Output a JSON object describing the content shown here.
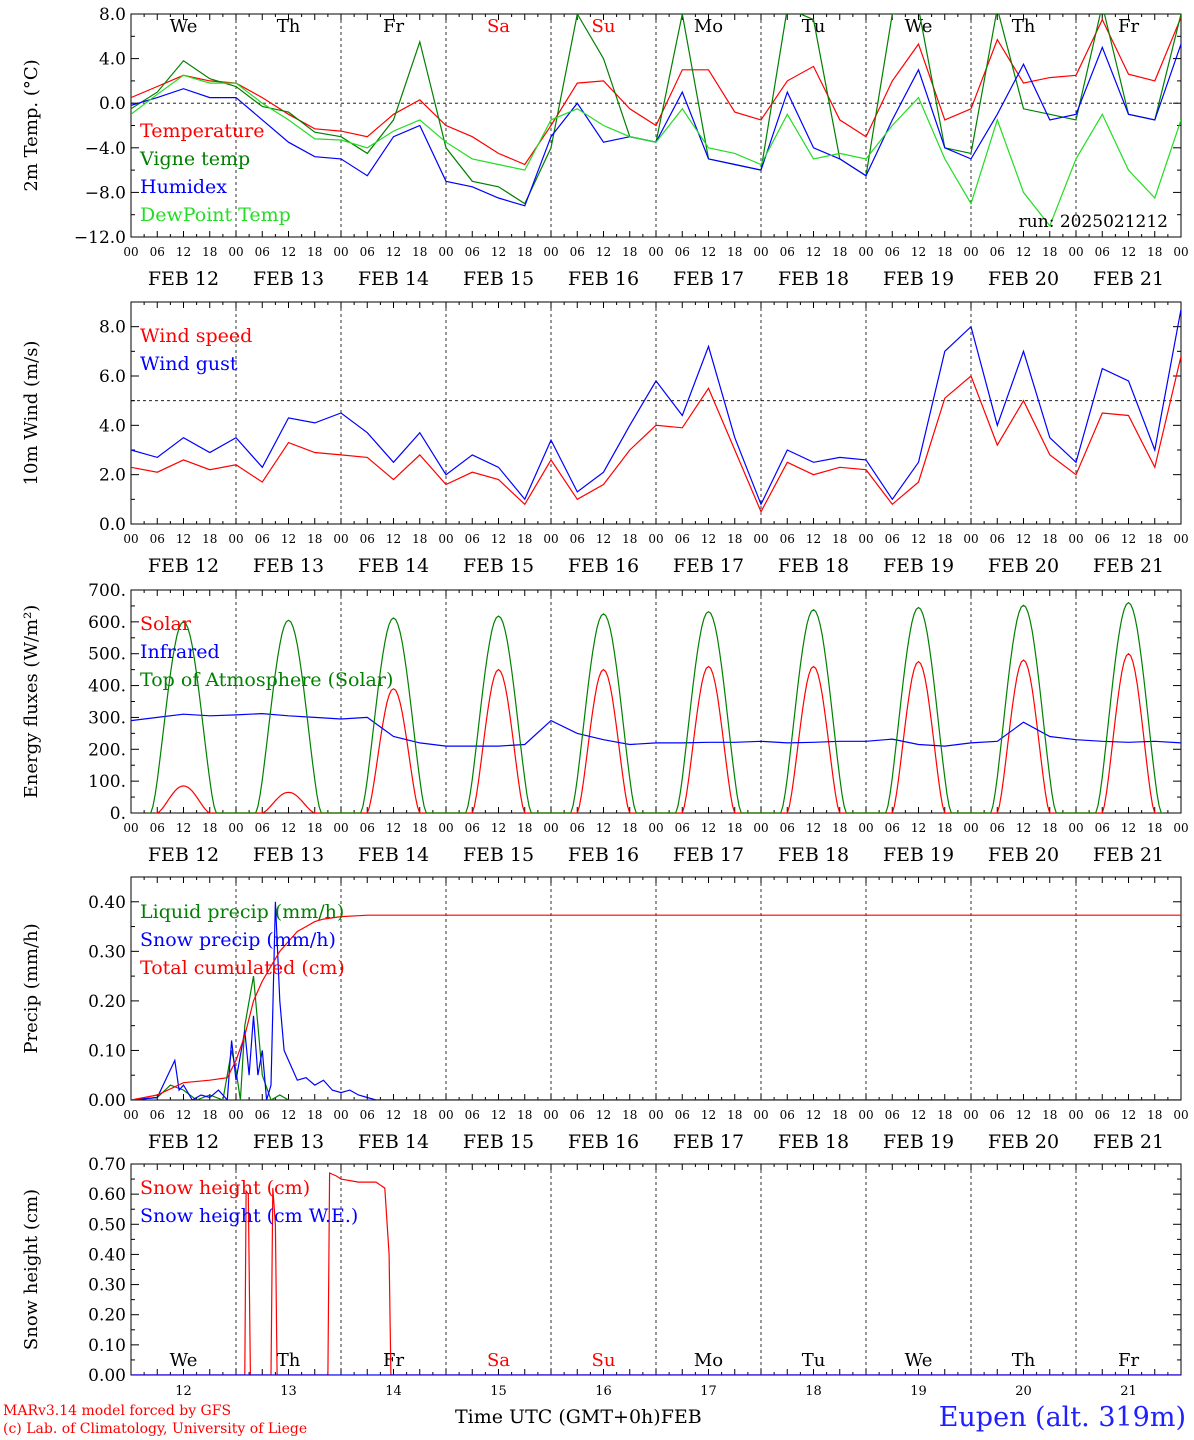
{
  "run_label": "run: 2025021212",
  "footer": {
    "model": "MARv3.14 model forced by GFS",
    "lab": "(c) Lab. of Climatology, University of Liege",
    "location": "Eupen (alt. 319m)",
    "xlabel": "Time UTC (GMT+0h)",
    "month": "FEB"
  },
  "colors": {
    "red": "#ff0000",
    "green": "#008000",
    "blue": "#0000ff",
    "lightgreen": "#22dd22",
    "black": "#000000"
  },
  "chart_data": [
    {
      "type": "line",
      "ylabel": "2m Temp. (°C)",
      "ylim": [
        -12,
        8
      ],
      "yticks": [
        8.0,
        4.0,
        0.0,
        -4.0,
        -8.0,
        -12.0
      ],
      "ytick_labels": [
        "8.0",
        "4.0",
        "0.0",
        "−4.0",
        "−8.0",
        "−12.0"
      ],
      "ref_line": 0,
      "hour_ticks": [
        "00",
        "06",
        "12",
        "18"
      ],
      "date_labels": [
        "FEB 12",
        "FEB 13",
        "FEB 14",
        "FEB 15",
        "FEB 16",
        "FEB 17",
        "FEB 18",
        "FEB 19",
        "FEB 20",
        "FEB 21"
      ],
      "weekdays": [
        {
          "label": "We",
          "color": "#000000"
        },
        {
          "label": "Th",
          "color": "#000000"
        },
        {
          "label": "Fr",
          "color": "#000000"
        },
        {
          "label": "Sa",
          "color": "#ff0000"
        },
        {
          "label": "Su",
          "color": "#ff0000"
        },
        {
          "label": "Mo",
          "color": "#000000"
        },
        {
          "label": "Tu",
          "color": "#000000"
        },
        {
          "label": "We",
          "color": "#000000"
        },
        {
          "label": "Th",
          "color": "#000000"
        },
        {
          "label": "Fr",
          "color": "#000000"
        }
      ],
      "series": [
        {
          "name": "Temperature",
          "color": "#ff0000",
          "x": [
            0,
            6,
            12,
            18,
            24,
            30,
            36,
            42,
            48,
            54,
            60,
            66,
            72,
            78,
            84,
            90,
            96,
            102,
            108,
            114,
            120,
            126,
            132,
            138,
            144,
            150,
            156,
            162,
            168,
            174,
            180,
            186,
            192,
            198,
            204,
            210,
            216,
            222,
            228,
            234,
            240
          ],
          "y": [
            0.5,
            1.5,
            2.5,
            2.0,
            1.8,
            0.5,
            -1.0,
            -2.3,
            -2.5,
            -3.0,
            -1.0,
            0.3,
            -2.0,
            -3.0,
            -4.5,
            -5.5,
            -2.0,
            1.8,
            2.0,
            -0.5,
            -2.0,
            3.0,
            3.0,
            -0.8,
            -1.5,
            2.0,
            3.3,
            -1.5,
            -3.0,
            2.0,
            5.3,
            -1.5,
            -0.5,
            5.7,
            1.8,
            2.3,
            2.5,
            7.5,
            2.6,
            2.0,
            7.7
          ]
        },
        {
          "name": "Vigne temp",
          "color": "#008000",
          "x": [
            0,
            6,
            12,
            18,
            24,
            30,
            36,
            42,
            48,
            54,
            60,
            66,
            72,
            78,
            84,
            90,
            96,
            102,
            108,
            114,
            120,
            126,
            132,
            138,
            144,
            150,
            156,
            162,
            168,
            174,
            180,
            186,
            192,
            198,
            204,
            210,
            216,
            222,
            228,
            234,
            240
          ],
          "y": [
            -0.5,
            1.0,
            3.8,
            2.2,
            1.5,
            -0.3,
            -0.8,
            -2.6,
            -3.0,
            -4.5,
            -1.5,
            5.5,
            -4.0,
            -7.0,
            -7.5,
            -9.0,
            -4.0,
            8.0,
            4.0,
            -3.0,
            -3.5,
            8.0,
            -5.0,
            -5.5,
            -6.0,
            8.5,
            7.5,
            -5.0,
            -6.5,
            8.0,
            8.5,
            -4.0,
            -4.5,
            8.5,
            -0.5,
            -1.0,
            -1.5,
            8.8,
            -1.0,
            -1.5,
            8.0
          ]
        },
        {
          "name": "Humidex",
          "color": "#0000ff",
          "x": [
            0,
            6,
            12,
            18,
            24,
            30,
            36,
            42,
            48,
            54,
            60,
            66,
            72,
            78,
            84,
            90,
            96,
            102,
            108,
            114,
            120,
            126,
            132,
            138,
            144,
            150,
            156,
            162,
            168,
            174,
            180,
            186,
            192,
            198,
            204,
            210,
            216,
            222,
            228,
            234,
            240
          ],
          "y": [
            -0.2,
            0.5,
            1.3,
            0.5,
            0.5,
            -1.5,
            -3.5,
            -4.8,
            -5.0,
            -6.5,
            -3.0,
            -2.0,
            -7.0,
            -7.5,
            -8.5,
            -9.2,
            -3.0,
            0.0,
            -3.5,
            -3.0,
            -3.5,
            1.0,
            -5.0,
            -5.5,
            -6.0,
            1.0,
            -4.0,
            -5.0,
            -6.5,
            -1.5,
            3.0,
            -4.0,
            -5.0,
            -1.0,
            3.5,
            -1.5,
            -1.0,
            5.0,
            -1.0,
            -1.5,
            5.3
          ]
        },
        {
          "name": "DewPoint Temp",
          "color": "#22dd22",
          "x": [
            0,
            6,
            12,
            18,
            24,
            30,
            36,
            42,
            48,
            54,
            60,
            66,
            72,
            78,
            84,
            90,
            96,
            102,
            108,
            114,
            120,
            126,
            132,
            138,
            144,
            150,
            156,
            162,
            168,
            174,
            180,
            186,
            192,
            198,
            204,
            210,
            216,
            222,
            228,
            234,
            240
          ],
          "y": [
            -1.0,
            0.8,
            2.5,
            1.8,
            1.8,
            0.0,
            -1.5,
            -3.2,
            -3.3,
            -4.0,
            -2.5,
            -1.5,
            -3.5,
            -5.0,
            -5.5,
            -6.0,
            -1.5,
            -0.5,
            -2.0,
            -3.0,
            -3.5,
            -0.5,
            -4.0,
            -4.5,
            -5.5,
            -1.0,
            -5.0,
            -4.5,
            -5.0,
            -2.0,
            0.5,
            -5.0,
            -9.0,
            -1.5,
            -8.0,
            -11.0,
            -5.0,
            -1.0,
            -6.0,
            -8.5,
            -1.5
          ]
        }
      ]
    },
    {
      "type": "line",
      "ylabel": "10m Wind (m/s)",
      "ylim": [
        0,
        9
      ],
      "yticks": [
        8.0,
        6.0,
        4.0,
        2.0,
        0.0
      ],
      "ytick_labels": [
        "8.0",
        "6.0",
        "4.0",
        "2.0",
        "0.0"
      ],
      "ref_line": 5,
      "series": [
        {
          "name": "Wind speed",
          "color": "#ff0000",
          "x": [
            0,
            6,
            12,
            18,
            24,
            30,
            36,
            42,
            48,
            54,
            60,
            66,
            72,
            78,
            84,
            90,
            96,
            102,
            108,
            114,
            120,
            126,
            132,
            138,
            144,
            150,
            156,
            162,
            168,
            174,
            180,
            186,
            192,
            198,
            204,
            210,
            216,
            222,
            228,
            234,
            240
          ],
          "y": [
            2.3,
            2.1,
            2.6,
            2.2,
            2.4,
            1.7,
            3.3,
            2.9,
            2.8,
            2.7,
            1.8,
            2.8,
            1.6,
            2.1,
            1.8,
            0.8,
            2.6,
            1.0,
            1.6,
            3.0,
            4.0,
            3.9,
            5.5,
            3.0,
            0.5,
            2.5,
            2.0,
            2.3,
            2.2,
            0.8,
            1.7,
            5.1,
            6.0,
            3.2,
            5.0,
            2.8,
            2.0,
            4.5,
            4.4,
            2.3,
            6.8
          ]
        },
        {
          "name": "Wind gust",
          "color": "#0000ff",
          "x": [
            0,
            6,
            12,
            18,
            24,
            30,
            36,
            42,
            48,
            54,
            60,
            66,
            72,
            78,
            84,
            90,
            96,
            102,
            108,
            114,
            120,
            126,
            132,
            138,
            144,
            150,
            156,
            162,
            168,
            174,
            180,
            186,
            192,
            198,
            204,
            210,
            216,
            222,
            228,
            234,
            240
          ],
          "y": [
            3.0,
            2.7,
            3.5,
            2.9,
            3.5,
            2.3,
            4.3,
            4.1,
            4.5,
            3.7,
            2.5,
            3.7,
            2.0,
            2.8,
            2.3,
            1.0,
            3.4,
            1.3,
            2.1,
            4.0,
            5.8,
            4.4,
            7.2,
            3.5,
            0.8,
            3.0,
            2.5,
            2.7,
            2.6,
            1.0,
            2.5,
            7.0,
            8.0,
            4.0,
            7.0,
            3.5,
            2.5,
            6.3,
            5.8,
            3.0,
            8.7
          ]
        }
      ]
    },
    {
      "type": "line",
      "ylabel": "Energy fluxes (W/m²)",
      "ylim": [
        0,
        700
      ],
      "yticks": [
        700,
        600,
        500,
        400,
        300,
        200,
        100,
        0
      ],
      "ytick_labels": [
        "700.",
        "600.",
        "500.",
        "400.",
        "300.",
        "200.",
        "100.",
        "0."
      ],
      "ref_line": null,
      "series": [
        {
          "name": "Solar",
          "color": "#ff0000",
          "day_peaks": [
            85,
            65,
            390,
            450,
            450,
            460,
            460,
            475,
            480,
            500
          ]
        },
        {
          "name": "Infrared",
          "color": "#0000ff",
          "x": [
            0,
            6,
            12,
            18,
            24,
            30,
            36,
            42,
            48,
            54,
            60,
            66,
            72,
            78,
            84,
            90,
            96,
            102,
            108,
            114,
            120,
            126,
            132,
            138,
            144,
            150,
            156,
            162,
            168,
            174,
            180,
            186,
            192,
            198,
            204,
            210,
            216,
            222,
            228,
            234,
            240
          ],
          "y": [
            290,
            300,
            310,
            305,
            308,
            312,
            305,
            300,
            295,
            300,
            240,
            220,
            210,
            210,
            210,
            215,
            290,
            250,
            230,
            215,
            220,
            220,
            222,
            222,
            225,
            220,
            222,
            225,
            225,
            232,
            215,
            210,
            220,
            225,
            285,
            240,
            230,
            225,
            222,
            225,
            220
          ]
        },
        {
          "name": "Top of Atmosphere (Solar)",
          "color": "#008000",
          "day_peaks": [
            600,
            605,
            612,
            618,
            625,
            632,
            638,
            645,
            652,
            660
          ]
        }
      ]
    },
    {
      "type": "line",
      "ylabel": "Precip (mm/h)",
      "ylim": [
        0,
        0.45
      ],
      "yticks": [
        0.4,
        0.3,
        0.2,
        0.1,
        0.0
      ],
      "ytick_labels": [
        "0.40",
        "0.30",
        "0.20",
        "0.10",
        "0.00"
      ],
      "ref_line": null,
      "series": [
        {
          "name": "Liquid precip (mm/h)",
          "color": "#008000",
          "x": [
            0,
            6,
            9,
            12,
            15,
            18,
            21,
            23,
            24,
            25,
            26,
            28,
            30,
            32,
            34,
            36,
            240
          ],
          "y": [
            0,
            0.005,
            0.03,
            0.02,
            0.0,
            0.01,
            0.0,
            0.1,
            0.06,
            0.0,
            0.15,
            0.25,
            0.05,
            0.0,
            0.01,
            0.0,
            0.0
          ]
        },
        {
          "name": "Snow precip (mm/h)",
          "color": "#0000ff",
          "x": [
            0,
            6,
            10,
            11,
            12,
            14,
            16,
            18,
            20,
            22,
            23,
            24,
            25,
            26,
            27,
            28,
            29,
            30,
            31,
            32,
            33,
            34,
            35,
            36,
            38,
            40,
            42,
            44,
            46,
            48,
            50,
            52,
            54,
            56,
            240
          ],
          "y": [
            0,
            0.005,
            0.08,
            0.02,
            0.03,
            0.0,
            0.01,
            0.005,
            0.02,
            0.0,
            0.12,
            0.04,
            0.09,
            0.14,
            0.05,
            0.17,
            0.05,
            0.1,
            0.0,
            0.03,
            0.4,
            0.2,
            0.1,
            0.08,
            0.04,
            0.045,
            0.03,
            0.04,
            0.02,
            0.015,
            0.02,
            0.01,
            0.005,
            0.0,
            0.0
          ]
        },
        {
          "name": "Total cumulated (cm)",
          "color": "#ff0000",
          "x": [
            0,
            6,
            12,
            18,
            22,
            24,
            26,
            28,
            30,
            32,
            34,
            36,
            38,
            40,
            42,
            44,
            48,
            52,
            54,
            240
          ],
          "y": [
            0,
            0.01,
            0.035,
            0.04,
            0.045,
            0.08,
            0.13,
            0.2,
            0.24,
            0.27,
            0.3,
            0.32,
            0.34,
            0.35,
            0.36,
            0.365,
            0.37,
            0.372,
            0.373,
            0.373
          ]
        }
      ]
    },
    {
      "type": "line",
      "ylabel": "Snow height (cm)",
      "ylim": [
        0,
        0.7
      ],
      "yticks": [
        0.7,
        0.6,
        0.5,
        0.4,
        0.3,
        0.2,
        0.1,
        0.0
      ],
      "ytick_labels": [
        "0.70",
        "0.60",
        "0.50",
        "0.40",
        "0.30",
        "0.20",
        "0.10",
        "0.00"
      ],
      "ref_line": null,
      "day_numbers": [
        "12",
        "13",
        "14",
        "15",
        "16",
        "17",
        "18",
        "19",
        "20",
        "21"
      ],
      "series": [
        {
          "name": "Snow height (cm)",
          "color": "#ff0000",
          "x": [
            0,
            26,
            26.3,
            26.8,
            27.3,
            32,
            32.4,
            33,
            33.4,
            45,
            45.4,
            47,
            48,
            52,
            56,
            58,
            59,
            59.4,
            240
          ],
          "y": [
            0,
            0,
            0.61,
            0.6,
            0,
            0,
            0.62,
            0.5,
            0,
            0,
            0.67,
            0.66,
            0.65,
            0.64,
            0.64,
            0.62,
            0.4,
            0,
            0
          ]
        },
        {
          "name": "Snow height (cm W.E.)",
          "color": "#0000ff",
          "x": [
            0,
            240
          ],
          "y": [
            0,
            0
          ]
        }
      ]
    }
  ]
}
